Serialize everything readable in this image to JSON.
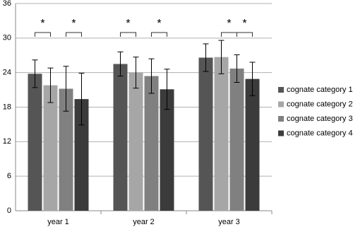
{
  "chart_data": {
    "type": "bar",
    "categories": [
      "year 1",
      "year 2",
      "year 3"
    ],
    "series": [
      {
        "name": "cognate category 1",
        "color": "#555555",
        "values": [
          23.8,
          25.5,
          26.6
        ],
        "errors": [
          2.4,
          2.1,
          2.4
        ]
      },
      {
        "name": "cognate category 2",
        "color": "#a6a6a6",
        "values": [
          21.8,
          24.0,
          26.7
        ],
        "errors": [
          3.0,
          2.7,
          2.9
        ]
      },
      {
        "name": "cognate category 3",
        "color": "#808080",
        "values": [
          21.2,
          23.4,
          24.7
        ],
        "errors": [
          3.9,
          3.0,
          2.4
        ]
      },
      {
        "name": "cognate category 4",
        "color": "#3b3b3b",
        "values": [
          19.4,
          21.1,
          22.9
        ],
        "errors": [
          4.5,
          3.5,
          2.9
        ]
      }
    ],
    "ylim": [
      0,
      36
    ],
    "yticks": [
      0,
      6,
      12,
      18,
      24,
      30,
      36
    ],
    "grid": true,
    "legend": "right",
    "significance": [
      {
        "category": 0,
        "pair": [
          0,
          1
        ],
        "label": "*"
      },
      {
        "category": 0,
        "pair": [
          2,
          3
        ],
        "label": "*"
      },
      {
        "category": 1,
        "pair": [
          0,
          1
        ],
        "label": "*"
      },
      {
        "category": 1,
        "pair": [
          2,
          3
        ],
        "label": "*"
      },
      {
        "category": 2,
        "pair": [
          1,
          2
        ],
        "label": "*"
      },
      {
        "category": 2,
        "pair": [
          2,
          3
        ],
        "label": "*"
      }
    ]
  }
}
